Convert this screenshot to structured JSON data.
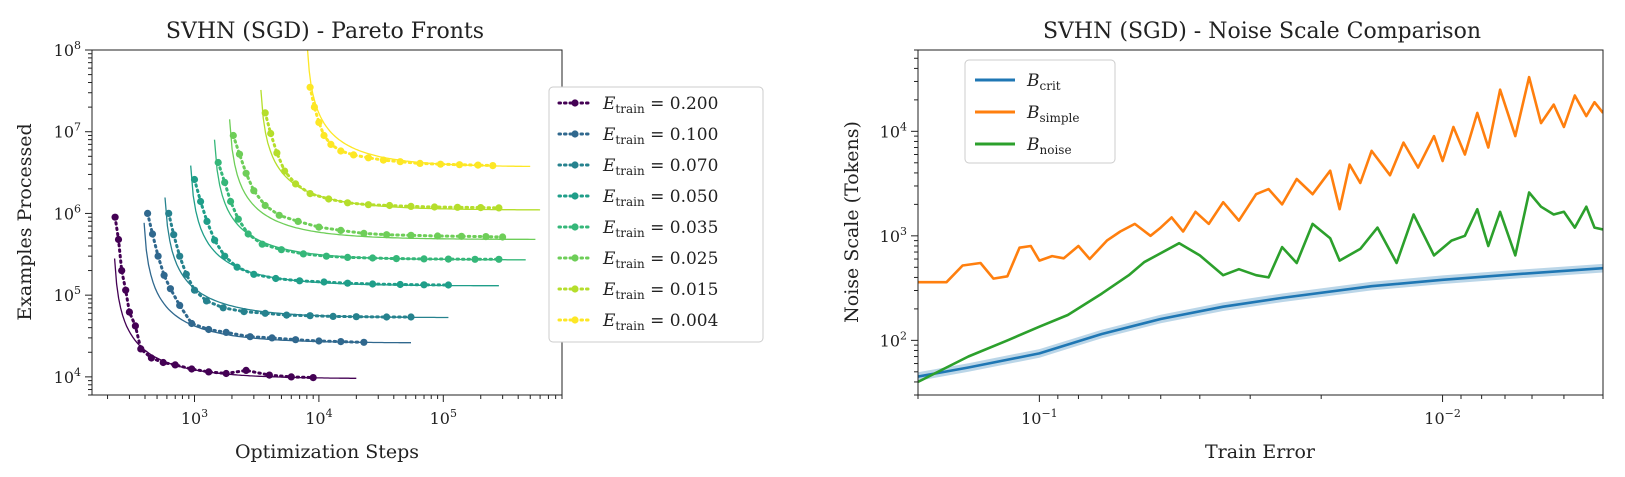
{
  "chart_data": [
    {
      "type": "scatter",
      "title": "SVHN (SGD) - Pareto Fronts",
      "xlabel": "Optimization Steps",
      "ylabel": "Examples Processed",
      "xscale": "log",
      "yscale": "log",
      "xlim": [
        150,
        900000
      ],
      "ylim": [
        6000,
        100000000
      ],
      "xticks": [
        {
          "v": 1000,
          "base": "10",
          "exp": "3"
        },
        {
          "v": 10000,
          "base": "10",
          "exp": "4"
        },
        {
          "v": 100000,
          "base": "10",
          "exp": "5"
        }
      ],
      "yticks": [
        {
          "v": 10000,
          "base": "10",
          "exp": "4"
        },
        {
          "v": 100000,
          "base": "10",
          "exp": "5"
        },
        {
          "v": 1000000,
          "base": "10",
          "exp": "6"
        },
        {
          "v": 10000000,
          "base": "10",
          "exp": "7"
        },
        {
          "v": 100000000,
          "base": "10",
          "exp": "8"
        }
      ],
      "legend_position": "outside-right",
      "series": [
        {
          "name": "0.200",
          "color": "#440154",
          "smin": 220,
          "emin": 9500,
          "xmax": 20000,
          "points": [
            [
              230,
              900000
            ],
            [
              245,
              480000
            ],
            [
              260,
              200000
            ],
            [
              280,
              115000
            ],
            [
              300,
              62000
            ],
            [
              335,
              42000
            ],
            [
              370,
              22000
            ],
            [
              450,
              17000
            ],
            [
              560,
              15000
            ],
            [
              700,
              14000
            ],
            [
              950,
              12500
            ],
            [
              1300,
              11500
            ],
            [
              1800,
              11000
            ],
            [
              2600,
              12000
            ],
            [
              4000,
              10500
            ],
            [
              6000,
              10000
            ],
            [
              9000,
              9800
            ]
          ]
        },
        {
          "name": "0.100",
          "color": "#30688e",
          "smin": 380,
          "emin": 26000,
          "xmax": 55000,
          "points": [
            [
              420,
              1000000
            ],
            [
              460,
              560000
            ],
            [
              510,
              300000
            ],
            [
              570,
              175000
            ],
            [
              640,
              120000
            ],
            [
              760,
              75000
            ],
            [
              950,
              45000
            ],
            [
              1300,
              38000
            ],
            [
              1800,
              35000
            ],
            [
              2800,
              31000
            ],
            [
              4200,
              30000
            ],
            [
              6500,
              28500
            ],
            [
              10000,
              27500
            ],
            [
              15000,
              27000
            ],
            [
              23000,
              26500
            ]
          ]
        },
        {
          "name": "0.070",
          "color": "#26828e",
          "smin": 560,
          "emin": 53000,
          "xmax": 110000,
          "points": [
            [
              620,
              1000000
            ],
            [
              680,
              550000
            ],
            [
              760,
              300000
            ],
            [
              860,
              180000
            ],
            [
              1000,
              115000
            ],
            [
              1250,
              85000
            ],
            [
              1700,
              70000
            ],
            [
              2500,
              63000
            ],
            [
              3700,
              60000
            ],
            [
              5500,
              57000
            ],
            [
              8500,
              56000
            ],
            [
              13000,
              55000
            ],
            [
              20000,
              54500
            ],
            [
              35000,
              54000
            ],
            [
              55000,
              54000
            ]
          ]
        },
        {
          "name": "0.050",
          "color": "#1f9e89",
          "smin": 900,
          "emin": 130000,
          "xmax": 280000,
          "points": [
            [
              1000,
              2600000
            ],
            [
              1120,
              1400000
            ],
            [
              1260,
              800000
            ],
            [
              1450,
              470000
            ],
            [
              1750,
              300000
            ],
            [
              2200,
              220000
            ],
            [
              3000,
              180000
            ],
            [
              4500,
              160000
            ],
            [
              7000,
              150000
            ],
            [
              11000,
              145000
            ],
            [
              17000,
              140000
            ],
            [
              27000,
              137000
            ],
            [
              45000,
              135000
            ],
            [
              70000,
              134000
            ],
            [
              110000,
              133000
            ]
          ]
        },
        {
          "name": "0.035",
          "color": "#35b779",
          "smin": 1400,
          "emin": 270000,
          "xmax": 460000,
          "points": [
            [
              1550,
              4200000
            ],
            [
              1750,
              2400000
            ],
            [
              1950,
              1400000
            ],
            [
              2250,
              850000
            ],
            [
              2700,
              560000
            ],
            [
              3500,
              420000
            ],
            [
              5000,
              360000
            ],
            [
              7500,
              320000
            ],
            [
              11500,
              300000
            ],
            [
              17000,
              290000
            ],
            [
              27000,
              285000
            ],
            [
              42000,
              280000
            ],
            [
              70000,
              278000
            ],
            [
              110000,
              276000
            ],
            [
              180000,
              275000
            ],
            [
              280000,
              275000
            ]
          ]
        },
        {
          "name": "0.025",
          "color": "#6ece58",
          "smin": 1850,
          "emin": 480000,
          "xmax": 550000,
          "points": [
            [
              2050,
              9000000
            ],
            [
              2300,
              5300000
            ],
            [
              2600,
              3100000
            ],
            [
              3000,
              1900000
            ],
            [
              3700,
              1250000
            ],
            [
              4800,
              950000
            ],
            [
              6800,
              800000
            ],
            [
              10000,
              680000
            ],
            [
              15000,
              620000
            ],
            [
              23000,
              570000
            ],
            [
              35000,
              550000
            ],
            [
              55000,
              540000
            ],
            [
              90000,
              530000
            ],
            [
              140000,
              525000
            ],
            [
              220000,
              520000
            ],
            [
              300000,
              515000
            ]
          ]
        },
        {
          "name": "0.015",
          "color": "#b5de2b",
          "smin": 3300,
          "emin": 1100000,
          "xmax": 600000,
          "points": [
            [
              3700,
              17000000
            ],
            [
              4100,
              9500000
            ],
            [
              4600,
              5500000
            ],
            [
              5300,
              3300000
            ],
            [
              6500,
              2300000
            ],
            [
              8500,
              1750000
            ],
            [
              12000,
              1500000
            ],
            [
              17000,
              1350000
            ],
            [
              25000,
              1280000
            ],
            [
              37000,
              1250000
            ],
            [
              55000,
              1220000
            ],
            [
              85000,
              1200000
            ],
            [
              130000,
              1190000
            ],
            [
              200000,
              1180000
            ],
            [
              280000,
              1170000
            ]
          ]
        },
        {
          "name": "0.004",
          "color": "#fde725",
          "smin": 7800,
          "emin": 3700000,
          "xmax": 500000,
          "points": [
            [
              8500,
              35000000
            ],
            [
              9200,
              20000000
            ],
            [
              10000,
              13000000
            ],
            [
              11000,
              9000000
            ],
            [
              12500,
              7000000
            ],
            [
              15000,
              5800000
            ],
            [
              19000,
              5200000
            ],
            [
              25000,
              4800000
            ],
            [
              33000,
              4500000
            ],
            [
              45000,
              4300000
            ],
            [
              65000,
              4100000
            ],
            [
              95000,
              4000000
            ],
            [
              135000,
              3950000
            ],
            [
              190000,
              3900000
            ],
            [
              250000,
              3850000
            ]
          ]
        }
      ]
    },
    {
      "type": "line",
      "title": "SVHN (SGD) - Noise Scale Comparison",
      "xlabel": "Train Error",
      "ylabel": "Noise Scale (Tokens)",
      "xscale": "log",
      "xinverted": true,
      "yscale": "log",
      "xlim": [
        0.2,
        0.004
      ],
      "ylim": [
        30,
        60000
      ],
      "xticks": [
        {
          "v": 0.1,
          "base": "10",
          "exp": "−1"
        },
        {
          "v": 0.01,
          "base": "10",
          "exp": "−2"
        }
      ],
      "yticks": [
        {
          "v": 100,
          "base": "10",
          "exp": "2"
        },
        {
          "v": 1000,
          "base": "10",
          "exp": "3"
        },
        {
          "v": 10000,
          "base": "10",
          "exp": "4"
        }
      ],
      "legend_position": "upper-left",
      "series": [
        {
          "name": "crit",
          "color": "#1f77b4",
          "band": true,
          "points": [
            [
              0.2,
              45
            ],
            [
              0.15,
              55
            ],
            [
              0.1,
              75
            ],
            [
              0.07,
              115
            ],
            [
              0.05,
              160
            ],
            [
              0.035,
              210
            ],
            [
              0.025,
              255
            ],
            [
              0.015,
              330
            ],
            [
              0.01,
              380
            ],
            [
              0.0065,
              430
            ],
            [
              0.004,
              490
            ]
          ]
        },
        {
          "name": "simple",
          "color": "#ff7f0e",
          "points": [
            [
              0.2,
              360
            ],
            [
              0.17,
              360
            ],
            [
              0.155,
              520
            ],
            [
              0.14,
              550
            ],
            [
              0.13,
              390
            ],
            [
              0.12,
              410
            ],
            [
              0.112,
              770
            ],
            [
              0.105,
              800
            ],
            [
              0.1,
              580
            ],
            [
              0.093,
              640
            ],
            [
              0.087,
              610
            ],
            [
              0.08,
              800
            ],
            [
              0.075,
              600
            ],
            [
              0.068,
              900
            ],
            [
              0.063,
              1100
            ],
            [
              0.058,
              1300
            ],
            [
              0.053,
              1000
            ],
            [
              0.05,
              1200
            ],
            [
              0.047,
              1500
            ],
            [
              0.044,
              1100
            ],
            [
              0.041,
              1700
            ],
            [
              0.038,
              1300
            ],
            [
              0.035,
              2100
            ],
            [
              0.032,
              1400
            ],
            [
              0.029,
              2500
            ],
            [
              0.027,
              2800
            ],
            [
              0.025,
              2000
            ],
            [
              0.023,
              3500
            ],
            [
              0.021,
              2500
            ],
            [
              0.019,
              4200
            ],
            [
              0.018,
              1800
            ],
            [
              0.017,
              4800
            ],
            [
              0.016,
              3200
            ],
            [
              0.015,
              6500
            ],
            [
              0.0135,
              3800
            ],
            [
              0.0125,
              7800
            ],
            [
              0.0115,
              4500
            ],
            [
              0.0105,
              9000
            ],
            [
              0.01,
              5200
            ],
            [
              0.0094,
              11000
            ],
            [
              0.0088,
              6000
            ],
            [
              0.0082,
              15000
            ],
            [
              0.0077,
              7000
            ],
            [
              0.0072,
              25000
            ],
            [
              0.0066,
              9000
            ],
            [
              0.0061,
              33000
            ],
            [
              0.0057,
              12000
            ],
            [
              0.0053,
              18000
            ],
            [
              0.005,
              11000
            ],
            [
              0.0047,
              22000
            ],
            [
              0.0044,
              14000
            ],
            [
              0.0042,
              19000
            ],
            [
              0.004,
              15000
            ]
          ]
        },
        {
          "name": "noise",
          "color": "#2ca02c",
          "points": [
            [
              0.2,
              40
            ],
            [
              0.17,
              55
            ],
            [
              0.15,
              70
            ],
            [
              0.12,
              100
            ],
            [
              0.1,
              135
            ],
            [
              0.085,
              175
            ],
            [
              0.07,
              280
            ],
            [
              0.06,
              420
            ],
            [
              0.055,
              560
            ],
            [
              0.045,
              850
            ],
            [
              0.04,
              650
            ],
            [
              0.035,
              420
            ],
            [
              0.032,
              480
            ],
            [
              0.029,
              420
            ],
            [
              0.027,
              400
            ],
            [
              0.025,
              780
            ],
            [
              0.023,
              550
            ],
            [
              0.021,
              1300
            ],
            [
              0.019,
              950
            ],
            [
              0.018,
              580
            ],
            [
              0.016,
              750
            ],
            [
              0.0145,
              1200
            ],
            [
              0.013,
              550
            ],
            [
              0.0118,
              1600
            ],
            [
              0.0105,
              650
            ],
            [
              0.0095,
              900
            ],
            [
              0.0088,
              1000
            ],
            [
              0.0082,
              1800
            ],
            [
              0.0077,
              800
            ],
            [
              0.0072,
              1700
            ],
            [
              0.0066,
              650
            ],
            [
              0.0061,
              2600
            ],
            [
              0.0057,
              1900
            ],
            [
              0.0053,
              1600
            ],
            [
              0.005,
              1700
            ],
            [
              0.0047,
              1200
            ],
            [
              0.0044,
              1900
            ],
            [
              0.0042,
              1200
            ],
            [
              0.004,
              1150
            ]
          ]
        }
      ]
    }
  ],
  "legend1": {
    "var": "E",
    "sub": "train",
    "eq": "="
  },
  "legend2": {
    "script": "B"
  }
}
